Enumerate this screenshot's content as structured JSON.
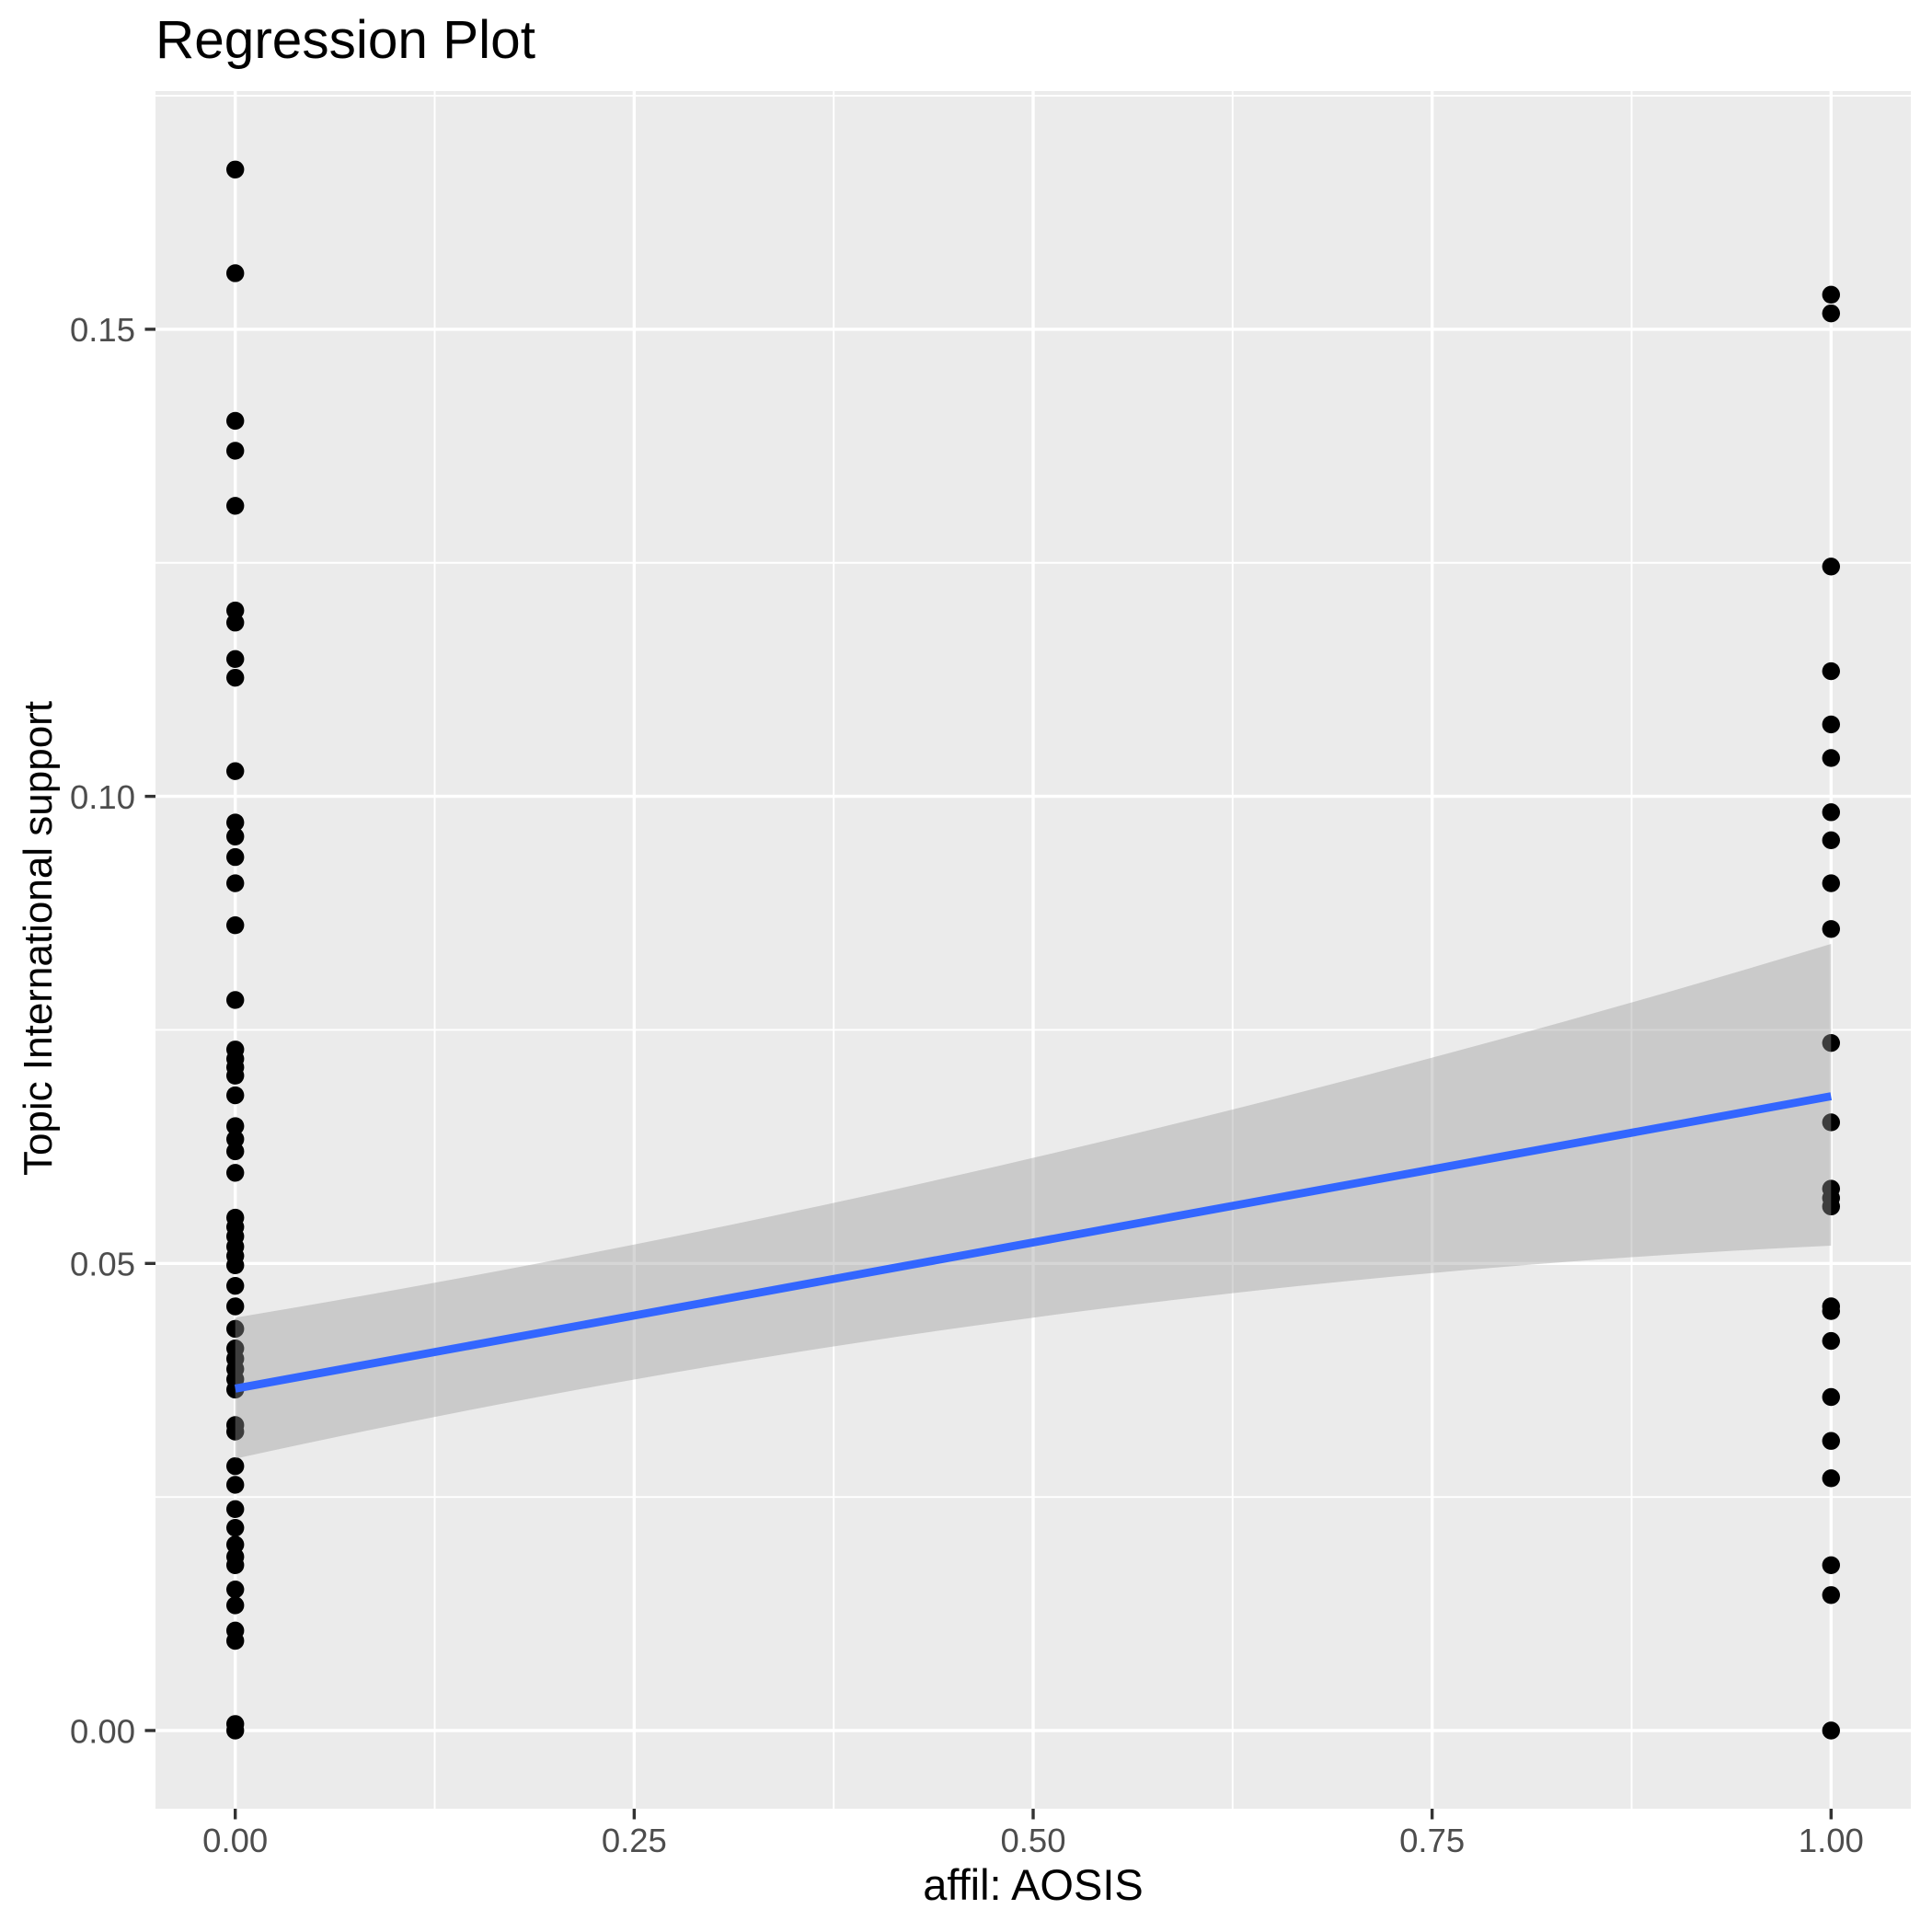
{
  "chart_data": {
    "type": "scatter",
    "title": "Regression Plot",
    "xlabel": "affil: AOSIS",
    "ylabel": "Topic International support",
    "xlim": [
      -0.05,
      1.05
    ],
    "ylim": [
      -0.0084,
      0.1755
    ],
    "x_ticks": {
      "values": [
        0.0,
        0.25,
        0.5,
        0.75,
        1.0
      ],
      "labels": [
        "0.00",
        "0.25",
        "0.50",
        "0.75",
        "1.00"
      ]
    },
    "y_ticks": {
      "values": [
        0.0,
        0.05,
        0.1,
        0.15
      ],
      "labels": [
        "0.00",
        "0.05",
        "0.10",
        "0.15"
      ]
    },
    "x_minor_ticks": [
      0.125,
      0.375,
      0.625,
      0.875
    ],
    "y_minor_ticks": [
      0.025,
      0.075,
      0.125,
      0.175
    ],
    "grid": true,
    "legend": false,
    "series": [
      {
        "name": "affil: AOSIS = 0",
        "x": 0,
        "values": [
          0.1671,
          0.156,
          0.1402,
          0.137,
          0.1311,
          0.1199,
          0.1186,
          0.1147,
          0.1127,
          0.1027,
          0.0972,
          0.0957,
          0.0935,
          0.0907,
          0.0862,
          0.0782,
          0.0729,
          0.0719,
          0.071,
          0.0701,
          0.068,
          0.0647,
          0.0633,
          0.062,
          0.0597,
          0.0549,
          0.0539,
          0.0529,
          0.0518,
          0.0508,
          0.0498,
          0.0476,
          0.0454,
          0.043,
          0.0409,
          0.0398,
          0.0387,
          0.0376,
          0.0365,
          0.0327,
          0.032,
          0.0283,
          0.0263,
          0.0237,
          0.0217,
          0.0199,
          0.0186,
          0.0177,
          0.0151,
          0.0134,
          0.0107,
          0.0096,
          0.0007,
          0.0
        ]
      },
      {
        "name": "affil: AOSIS = 1",
        "x": 1,
        "values": [
          0.1537,
          0.1517,
          0.1246,
          0.1134,
          0.1077,
          0.1041,
          0.0983,
          0.0953,
          0.0907,
          0.0858,
          0.0736,
          0.0651,
          0.058,
          0.057,
          0.0561,
          0.0454,
          0.0449,
          0.0417,
          0.0357,
          0.031,
          0.027,
          0.0177,
          0.0145,
          0.0
        ]
      }
    ],
    "regression_line": {
      "x": [
        0,
        1
      ],
      "y": [
        0.0366,
        0.0679
      ]
    },
    "confidence_band": {
      "x": [
        0,
        0.5,
        1
      ],
      "upper": [
        0.0442,
        0.0613,
        0.0842
      ],
      "lower": [
        0.0291,
        0.0442,
        0.0519
      ]
    },
    "colors": {
      "panel_background": "#EBEBEB",
      "gridline": "#FFFFFF",
      "point": "#000000",
      "regression_line": "#3366FF",
      "confidence_band_fill": "#999999",
      "confidence_band_opacity": 0.4,
      "tick_mark": "#333333",
      "tick_label": "#4D4D4D",
      "title": "#000000"
    }
  }
}
